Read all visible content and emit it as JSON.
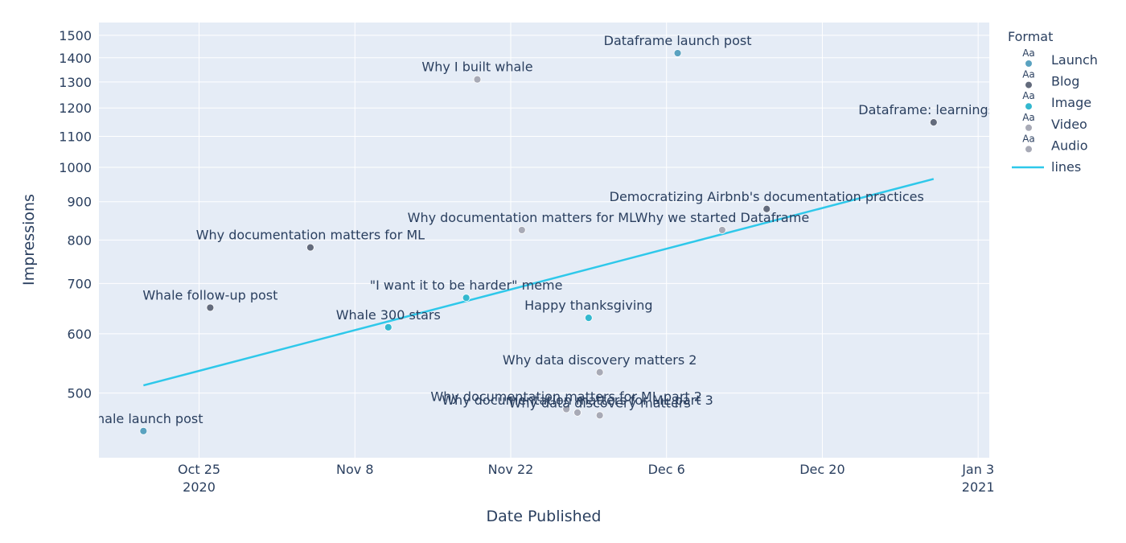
{
  "chart_data": {
    "type": "scatter",
    "xlabel": "Date Published",
    "ylabel": "Impressions",
    "yscale": "log",
    "ylim": [
      410,
      1560
    ],
    "xlim": [
      "2020-10-16",
      "2021-01-04"
    ],
    "grid": true,
    "legend_placement": "right",
    "colors": {
      "plot_bg": "#e5ecf6",
      "grid": "#ffffff",
      "text": "#2a3f5f",
      "Launch": "#5aa2c0",
      "Blog": "#636b7c",
      "Image": "#33b8cf",
      "Video": "#a8aab6",
      "Audio": "#a8aab6",
      "lines": "#2ec8ea"
    },
    "x_ticks": [
      {
        "date": "2020-10-25",
        "label": "Oct 25",
        "sublabel": "2020"
      },
      {
        "date": "2020-11-08",
        "label": "Nov 8",
        "sublabel": ""
      },
      {
        "date": "2020-11-22",
        "label": "Nov 22",
        "sublabel": ""
      },
      {
        "date": "2020-12-06",
        "label": "Dec 6",
        "sublabel": ""
      },
      {
        "date": "2020-12-20",
        "label": "Dec 20",
        "sublabel": ""
      },
      {
        "date": "2021-01-03",
        "label": "Jan 3",
        "sublabel": "2021"
      }
    ],
    "y_ticks": [
      500,
      600,
      700,
      800,
      900,
      1000,
      1100,
      1200,
      1300,
      1400,
      1500
    ],
    "legend": {
      "title": "Format",
      "items": [
        {
          "name": "Launch",
          "kind": "marker",
          "color_key": "Launch"
        },
        {
          "name": "Blog",
          "kind": "marker",
          "color_key": "Blog"
        },
        {
          "name": "Image",
          "kind": "marker",
          "color_key": "Image"
        },
        {
          "name": "Video",
          "kind": "marker",
          "color_key": "Video"
        },
        {
          "name": "Audio",
          "kind": "marker",
          "color_key": "Audio"
        },
        {
          "name": "lines",
          "kind": "line",
          "color_key": "lines"
        }
      ],
      "marker_glyph": "Aa"
    },
    "points": [
      {
        "label": "Whale launch post",
        "date": "2020-10-20",
        "y": 445,
        "format": "Launch"
      },
      {
        "label": "Whale follow-up post",
        "date": "2020-10-26",
        "y": 650,
        "format": "Blog"
      },
      {
        "label": "Why documentation matters for ML",
        "date": "2020-11-04",
        "y": 782,
        "format": "Blog"
      },
      {
        "label": "Whale 300 stars",
        "date": "2020-11-11",
        "y": 612,
        "format": "Image"
      },
      {
        "label": "\"I want it to be harder\" meme",
        "date": "2020-11-18",
        "y": 670,
        "format": "Image"
      },
      {
        "label": "Why I built whale",
        "date": "2020-11-19",
        "y": 1310,
        "format": "Video"
      },
      {
        "label": "Why documentation matters for ML",
        "date": "2020-11-23",
        "y": 825,
        "format": "Video"
      },
      {
        "label": "Why documentation matters for ML part 2",
        "date": "2020-11-27",
        "y": 476,
        "format": "Video"
      },
      {
        "label": "Why documentation matters for ML part 3",
        "date": "2020-11-28",
        "y": 471,
        "format": "Video"
      },
      {
        "label": "Happy thanksgiving",
        "date": "2020-11-29",
        "y": 630,
        "format": "Image"
      },
      {
        "label": "Why data discovery matters 2",
        "date": "2020-11-30",
        "y": 533,
        "format": "Audio"
      },
      {
        "label": "Why data discovery matters",
        "date": "2020-11-30",
        "y": 467,
        "format": "Audio"
      },
      {
        "label": "Dataframe launch post",
        "date": "2020-12-07",
        "y": 1420,
        "format": "Launch"
      },
      {
        "label": "Why we started Dataframe",
        "date": "2020-12-11",
        "y": 825,
        "format": "Video"
      },
      {
        "label": "Democratizing Airbnb's documentation practices",
        "date": "2020-12-15",
        "y": 880,
        "format": "Blog"
      },
      {
        "label": "Dataframe: learnings fr",
        "date": "2020-12-30",
        "y": 1148,
        "format": "Blog"
      }
    ],
    "trendline": {
      "name": "lines",
      "points": [
        {
          "date": "2020-10-20",
          "y": 512
        },
        {
          "date": "2020-12-30",
          "y": 965
        }
      ]
    }
  }
}
